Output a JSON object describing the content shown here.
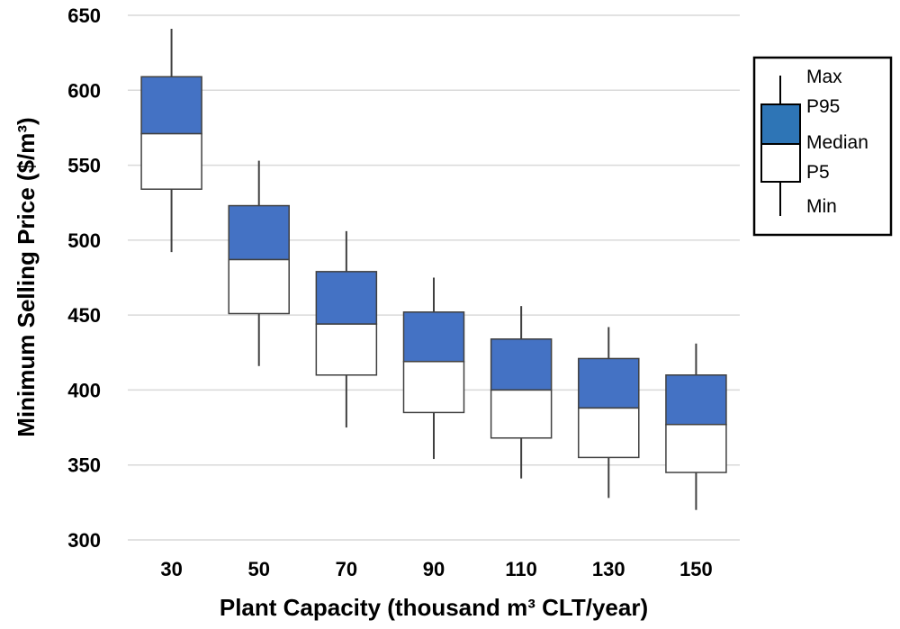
{
  "chart_data": {
    "type": "boxplot",
    "xlabel": "Plant Capacity (thousand m³ CLT/year)",
    "ylabel": "Minimum Selling Price ($/m³)",
    "ylim": [
      300,
      650
    ],
    "yticks": [
      "300",
      "350",
      "400",
      "450",
      "500",
      "550",
      "600",
      "650"
    ],
    "grid": true,
    "legend_position": "right",
    "categories": [
      "30",
      "50",
      "70",
      "90",
      "110",
      "130",
      "150"
    ],
    "series": [
      {
        "min": 492,
        "p5": 534,
        "median": 571,
        "p95": 609,
        "max": 641
      },
      {
        "min": 416,
        "p5": 451,
        "median": 487,
        "p95": 523,
        "max": 553
      },
      {
        "min": 375,
        "p5": 410,
        "median": 444,
        "p95": 479,
        "max": 506
      },
      {
        "min": 354,
        "p5": 385,
        "median": 419,
        "p95": 452,
        "max": 475
      },
      {
        "min": 341,
        "p5": 368,
        "median": 400,
        "p95": 434,
        "max": 456
      },
      {
        "min": 328,
        "p5": 355,
        "median": 388,
        "p95": 421,
        "max": 442
      },
      {
        "min": 320,
        "p5": 345,
        "median": 377,
        "p95": 410,
        "max": 431
      }
    ],
    "legend": [
      "Max",
      "P95",
      "Median",
      "P5",
      "Min"
    ],
    "colors": {
      "upper_box": "#4472c4",
      "lower_box": "#ffffff",
      "stroke": "#404040",
      "grid": "#d9d9d9",
      "legend_fill": "#2e75b6"
    }
  }
}
